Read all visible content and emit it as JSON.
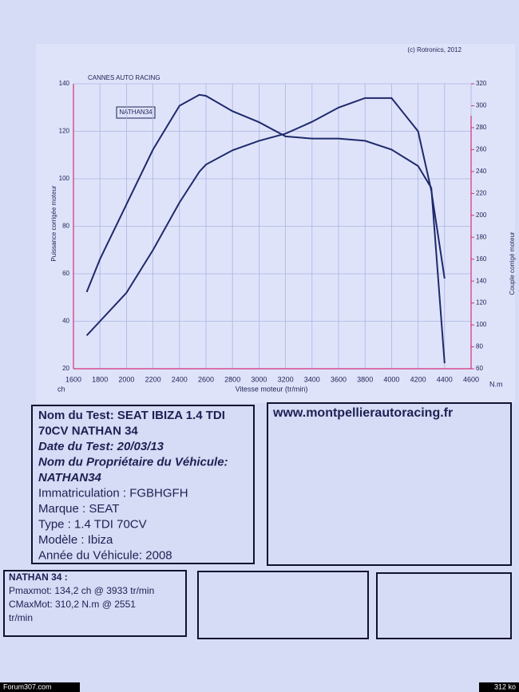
{
  "chart_data": {
    "type": "line",
    "title": "CANNES AUTO RACING",
    "copyright": "(c) Rotronics, 2012",
    "tag": "NATHAN34",
    "x_label": "Vitesse moteur (tr/min)",
    "y_label": "Puissance corrigée moteur",
    "y2_label": "Couple corrigé moteur",
    "y_unit": "ch",
    "y2_unit": "N.m",
    "x": [
      1700,
      1800,
      2000,
      2200,
      2400,
      2550,
      2600,
      2800,
      3000,
      3200,
      3400,
      3600,
      3800,
      4000,
      4200,
      4300,
      4400
    ],
    "series": [
      {
        "name": "Puissance",
        "color": "#1f2a6b",
        "values": [
          34,
          40,
          52,
          70,
          90,
          103,
          106,
          112,
          116,
          119,
          124,
          130,
          134,
          134,
          120,
          95,
          58
        ]
      },
      {
        "name": "Couple",
        "color": "#1f2a6b",
        "axis": "y2",
        "values": [
          130,
          160,
          210,
          260,
          300,
          310,
          309,
          295,
          285,
          272,
          270,
          270,
          268,
          260,
          245,
          225,
          65
        ]
      }
    ],
    "xlim": [
      1600,
      4600
    ],
    "xticks": [
      1600,
      1800,
      2000,
      2200,
      2400,
      2600,
      2800,
      3000,
      3200,
      3400,
      3600,
      3800,
      4000,
      4200,
      4400,
      4600
    ],
    "ylim": [
      20,
      140
    ],
    "yticks": [
      20,
      40,
      60,
      80,
      100,
      120,
      140
    ],
    "y2lim": [
      60,
      320
    ],
    "y2ticks": [
      60,
      80,
      100,
      120,
      140,
      160,
      180,
      200,
      220,
      240,
      260,
      280,
      300,
      320
    ],
    "grid": true
  },
  "test_info": [
    "Nom du Test: SEAT IBIZA 1.4 TDI",
    "70CV NATHAN 34",
    "Date du Test: 20/03/13",
    "Nom du Propriétaire du Véhicule:",
    "NATHAN34",
    "Immatriculation  : FGBHGFH",
    "Marque  : SEAT",
    "Type  : 1.4 TDI 70CV",
    "Modèle  : Ibiza",
    "Année du Véhicule: 2008"
  ],
  "website": "www.montpellierautoracing.fr",
  "summary": [
    "NATHAN 34 :",
    "Pmaxmot: 134,2 ch @ 3933 tr/min",
    "CMaxMot: 310,2 N.m @ 2551",
    "tr/min"
  ],
  "footer": {
    "site": "Forum307.com",
    "size": "312 ko"
  }
}
